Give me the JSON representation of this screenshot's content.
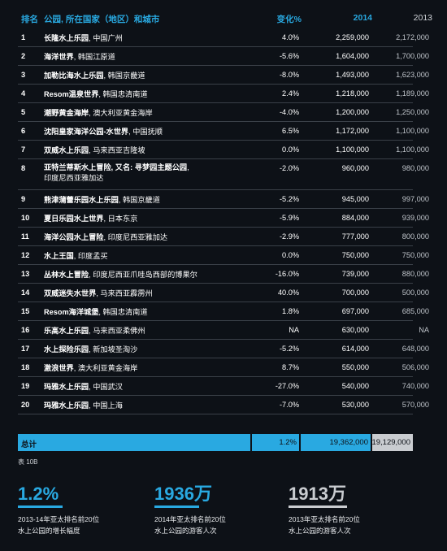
{
  "colors": {
    "accent": "#29a9e1",
    "gray": "#c9ccd0",
    "background": "#0d1117"
  },
  "header": {
    "rank": "排名",
    "park": "公园, 所在国家（地区）和城市",
    "change": "变化%",
    "y2014": "2014",
    "y2013": "2013"
  },
  "rows": [
    {
      "rank": "1",
      "name": "长隆水上乐园",
      "loc": ", 中国广州",
      "change": "4.0%",
      "v2014": "2,259,000",
      "v2013": "2,172,000"
    },
    {
      "rank": "2",
      "name": "海洋世界",
      "loc": ", 韩国江原道",
      "change": "-5.6%",
      "v2014": "1,604,000",
      "v2013": "1,700,000"
    },
    {
      "rank": "3",
      "name": "加勒比海水上乐园",
      "loc": ", 韩国京畿道",
      "change": "-8.0%",
      "v2014": "1,493,000",
      "v2013": "1,623,000"
    },
    {
      "rank": "4",
      "name": "Resom温泉世界",
      "loc": ", 韩国忠清南道",
      "change": "2.4%",
      "v2014": "1,218,000",
      "v2013": "1,189,000"
    },
    {
      "rank": "5",
      "name": "潮野黄金海岸",
      "loc": ", 澳大利亚黄金海岸",
      "change": "-4.0%",
      "v2014": "1,200,000",
      "v2013": "1,250,000"
    },
    {
      "rank": "6",
      "name": "沈阳皇家海洋公园-水世界",
      "loc": ", 中国抚顺",
      "change": "6.5%",
      "v2014": "1,172,000",
      "v2013": "1,100,000"
    },
    {
      "rank": "7",
      "name": "双威水上乐园",
      "loc": ", 马来西亚吉隆坡",
      "change": "0.0%",
      "v2014": "1,100,000",
      "v2013": "1,100,000"
    },
    {
      "rank": "8",
      "name": "亚特兰蒂斯水上冒险, 又名: 寻梦园主题公园",
      "loc": ",",
      "loc2": "印度尼西亚雅加达",
      "change": "-2.0%",
      "v2014": "960,000",
      "v2013": "980,000"
    },
    {
      "rank": "9",
      "name": "熊津蒲蕾乐园水上乐园",
      "loc": ", 韩国京畿道",
      "change": "-5.2%",
      "v2014": "945,000",
      "v2013": "997,000"
    },
    {
      "rank": "10",
      "name": "夏日乐园水上世界",
      "loc": ", 日本东京",
      "change": "-5.9%",
      "v2014": "884,000",
      "v2013": "939,000"
    },
    {
      "rank": "11",
      "name": "海洋公园水上冒险",
      "loc": ", 印度尼西亚雅加达",
      "change": "-2.9%",
      "v2014": "777,000",
      "v2013": "800,000"
    },
    {
      "rank": "12",
      "name": "水上王国",
      "loc": ", 印度孟买",
      "change": "0.0%",
      "v2014": "750,000",
      "v2013": "750,000"
    },
    {
      "rank": "13",
      "name": "丛林水上冒险",
      "loc": ", 印度尼西亚爪哇岛西部的博果尔",
      "change": "-16.0%",
      "v2014": "739,000",
      "v2013": "880,000"
    },
    {
      "rank": "14",
      "name": "双威迷失水世界",
      "loc": ", 马来西亚霹雳州",
      "change": "40.0%",
      "v2014": "700,000",
      "v2013": "500,000"
    },
    {
      "rank": "15",
      "name": "Resom海洋城堡",
      "loc": ", 韩国忠清南道",
      "change": "1.8%",
      "v2014": "697,000",
      "v2013": "685,000"
    },
    {
      "rank": "16",
      "name": "乐高水上乐园",
      "loc": ", 马来西亚柔佛州",
      "change": "NA",
      "v2014": "630,000",
      "v2013": "NA"
    },
    {
      "rank": "17",
      "name": "水上探险乐园",
      "loc": ", 新加坡圣淘沙",
      "change": "-5.2%",
      "v2014": "614,000",
      "v2013": "648,000"
    },
    {
      "rank": "18",
      "name": "激浪世界",
      "loc": ", 澳大利亚黄金海岸",
      "change": "8.7%",
      "v2014": "550,000",
      "v2013": "506,000"
    },
    {
      "rank": "19",
      "name": "玛雅水上乐园",
      "loc": ", 中国武汉",
      "change": "-27.0%",
      "v2014": "540,000",
      "v2013": "740,000"
    },
    {
      "rank": "20",
      "name": "玛雅水上乐园",
      "loc": ", 中国上海",
      "change": "-7.0%",
      "v2014": "530,000",
      "v2013": "570,000"
    }
  ],
  "total": {
    "label": "总计",
    "change": "1.2%",
    "v2014": "19,362,000",
    "v2013": "19,129,000"
  },
  "caption": "表 10B",
  "stats": [
    {
      "value": "1.2%",
      "line1": "2013-14年亚太排名前20位",
      "line2": "水上公园的增长幅度"
    },
    {
      "value": "1936万",
      "line1": "2014年亚太排名前20位",
      "line2": "水上公园的游客人次"
    },
    {
      "value": "1913万",
      "line1": "2013年亚太排名前20位",
      "line2": "水上公园的游客人次"
    }
  ]
}
